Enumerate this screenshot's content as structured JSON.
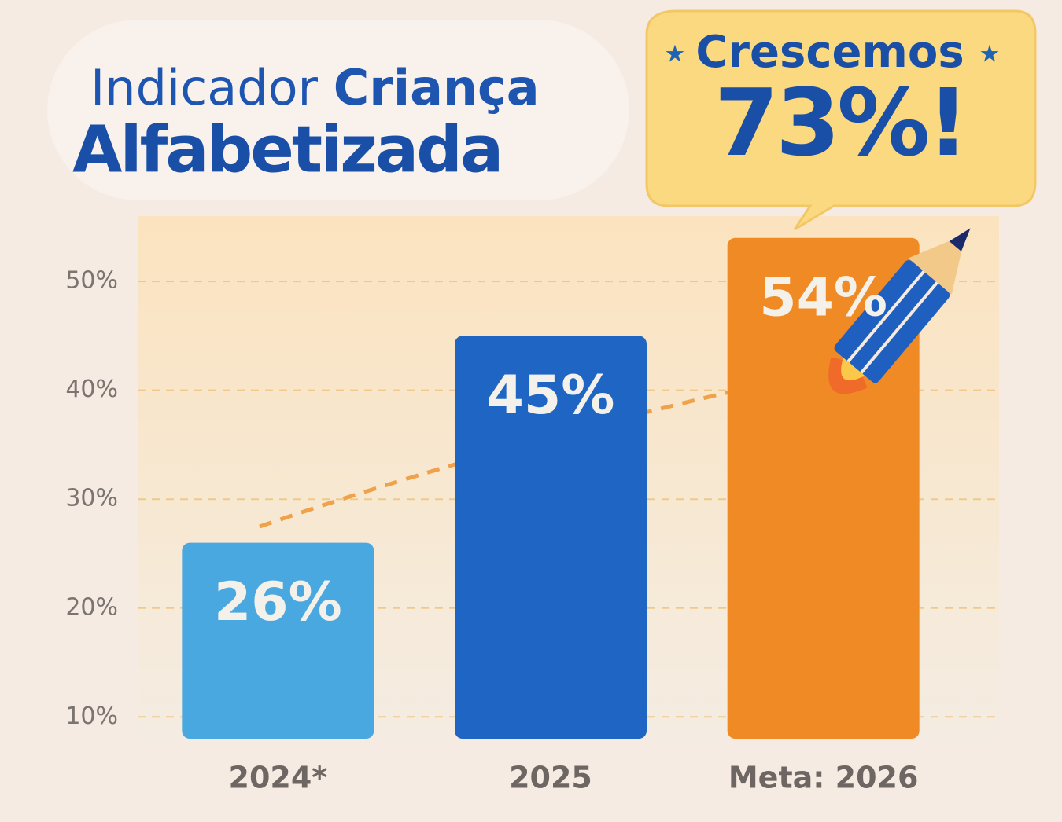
{
  "chart_data": {
    "type": "bar",
    "title": [
      "Indicador",
      "Criança",
      "Alfabetizada"
    ],
    "annotations": [
      "Crescemos",
      "73%!"
    ],
    "categories": [
      "2024*",
      "2025",
      "Meta: 2026"
    ],
    "values": [
      26,
      45,
      54
    ],
    "value_labels": [
      "26%",
      "45%",
      "54%"
    ],
    "colors": [
      "#4aa8e0",
      "#1f66c4",
      "#f08a24"
    ],
    "ylim": [
      8,
      56
    ],
    "yticks": [
      {
        "value": 10,
        "label": "10%"
      },
      {
        "value": 20,
        "label": "20%"
      },
      {
        "value": 30,
        "label": "30%"
      },
      {
        "value": 40,
        "label": "40%"
      },
      {
        "value": 50,
        "label": "50%"
      }
    ],
    "grid": true
  }
}
